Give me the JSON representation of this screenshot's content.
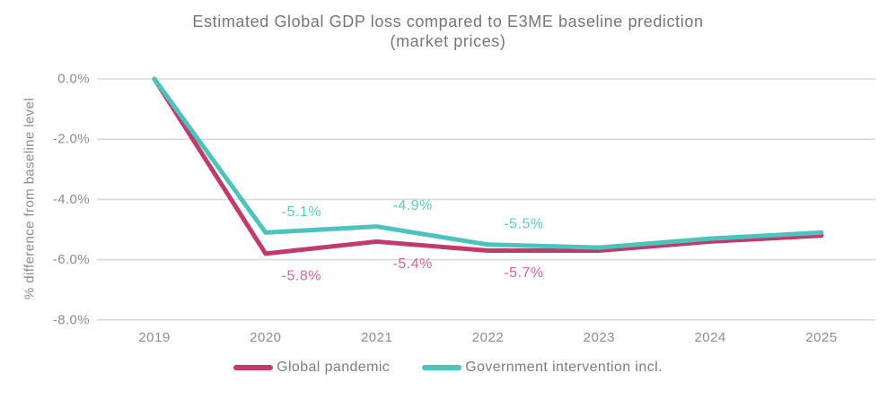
{
  "title": {
    "line1": "Estimated Global GDP loss compared to E3ME baseline prediction",
    "line2": "(market prices)"
  },
  "y_axis": {
    "title": "% difference from baseline level",
    "ticks": [
      {
        "label": "0.0%",
        "value": 0
      },
      {
        "label": "-2.0%",
        "value": -2
      },
      {
        "label": "-4.0%",
        "value": -4
      },
      {
        "label": "-6.0%",
        "value": -6
      },
      {
        "label": "-8.0%",
        "value": -8
      }
    ]
  },
  "x_axis": {
    "ticks": [
      "2019",
      "2020",
      "2021",
      "2022",
      "2023",
      "2024",
      "2025"
    ]
  },
  "colors": {
    "grid": "#d9d9d9",
    "title_text": "#767676",
    "axis_text": "#8c8c8c",
    "legend_text": "#7d7d7d",
    "pandemic_line": "#c23a6b",
    "pandemic_label": "#d4688f",
    "intervention_line": "#4cc3bc",
    "intervention_label": "#5ecac4"
  },
  "chart_data": {
    "type": "line",
    "categories": [
      2019,
      2020,
      2021,
      2022,
      2023,
      2024,
      2025
    ],
    "series": [
      {
        "name": "Global pandemic",
        "color": "#c23a6b",
        "label_color": "#d4688f",
        "values": [
          0.0,
          -5.8,
          -5.4,
          -5.7,
          -5.7,
          -5.4,
          -5.2
        ],
        "point_labels": [
          null,
          "-5.8%",
          "-5.4%",
          "-5.7%",
          null,
          null,
          null
        ],
        "label_side": "below"
      },
      {
        "name": "Government intervention incl.",
        "color": "#4cc3bc",
        "label_color": "#5ecac4",
        "values": [
          0.0,
          -5.1,
          -4.9,
          -5.5,
          -5.6,
          -5.3,
          -5.1
        ],
        "point_labels": [
          null,
          "-5.1%",
          "-4.9%",
          "-5.5%",
          null,
          null,
          null
        ],
        "label_side": "above"
      }
    ],
    "title": "Estimated Global GDP loss compared to E3ME baseline prediction (market prices)",
    "xlabel": "",
    "ylabel": "% difference from baseline level",
    "ylim": [
      -8,
      0
    ],
    "grid": true,
    "legend_position": "bottom"
  }
}
